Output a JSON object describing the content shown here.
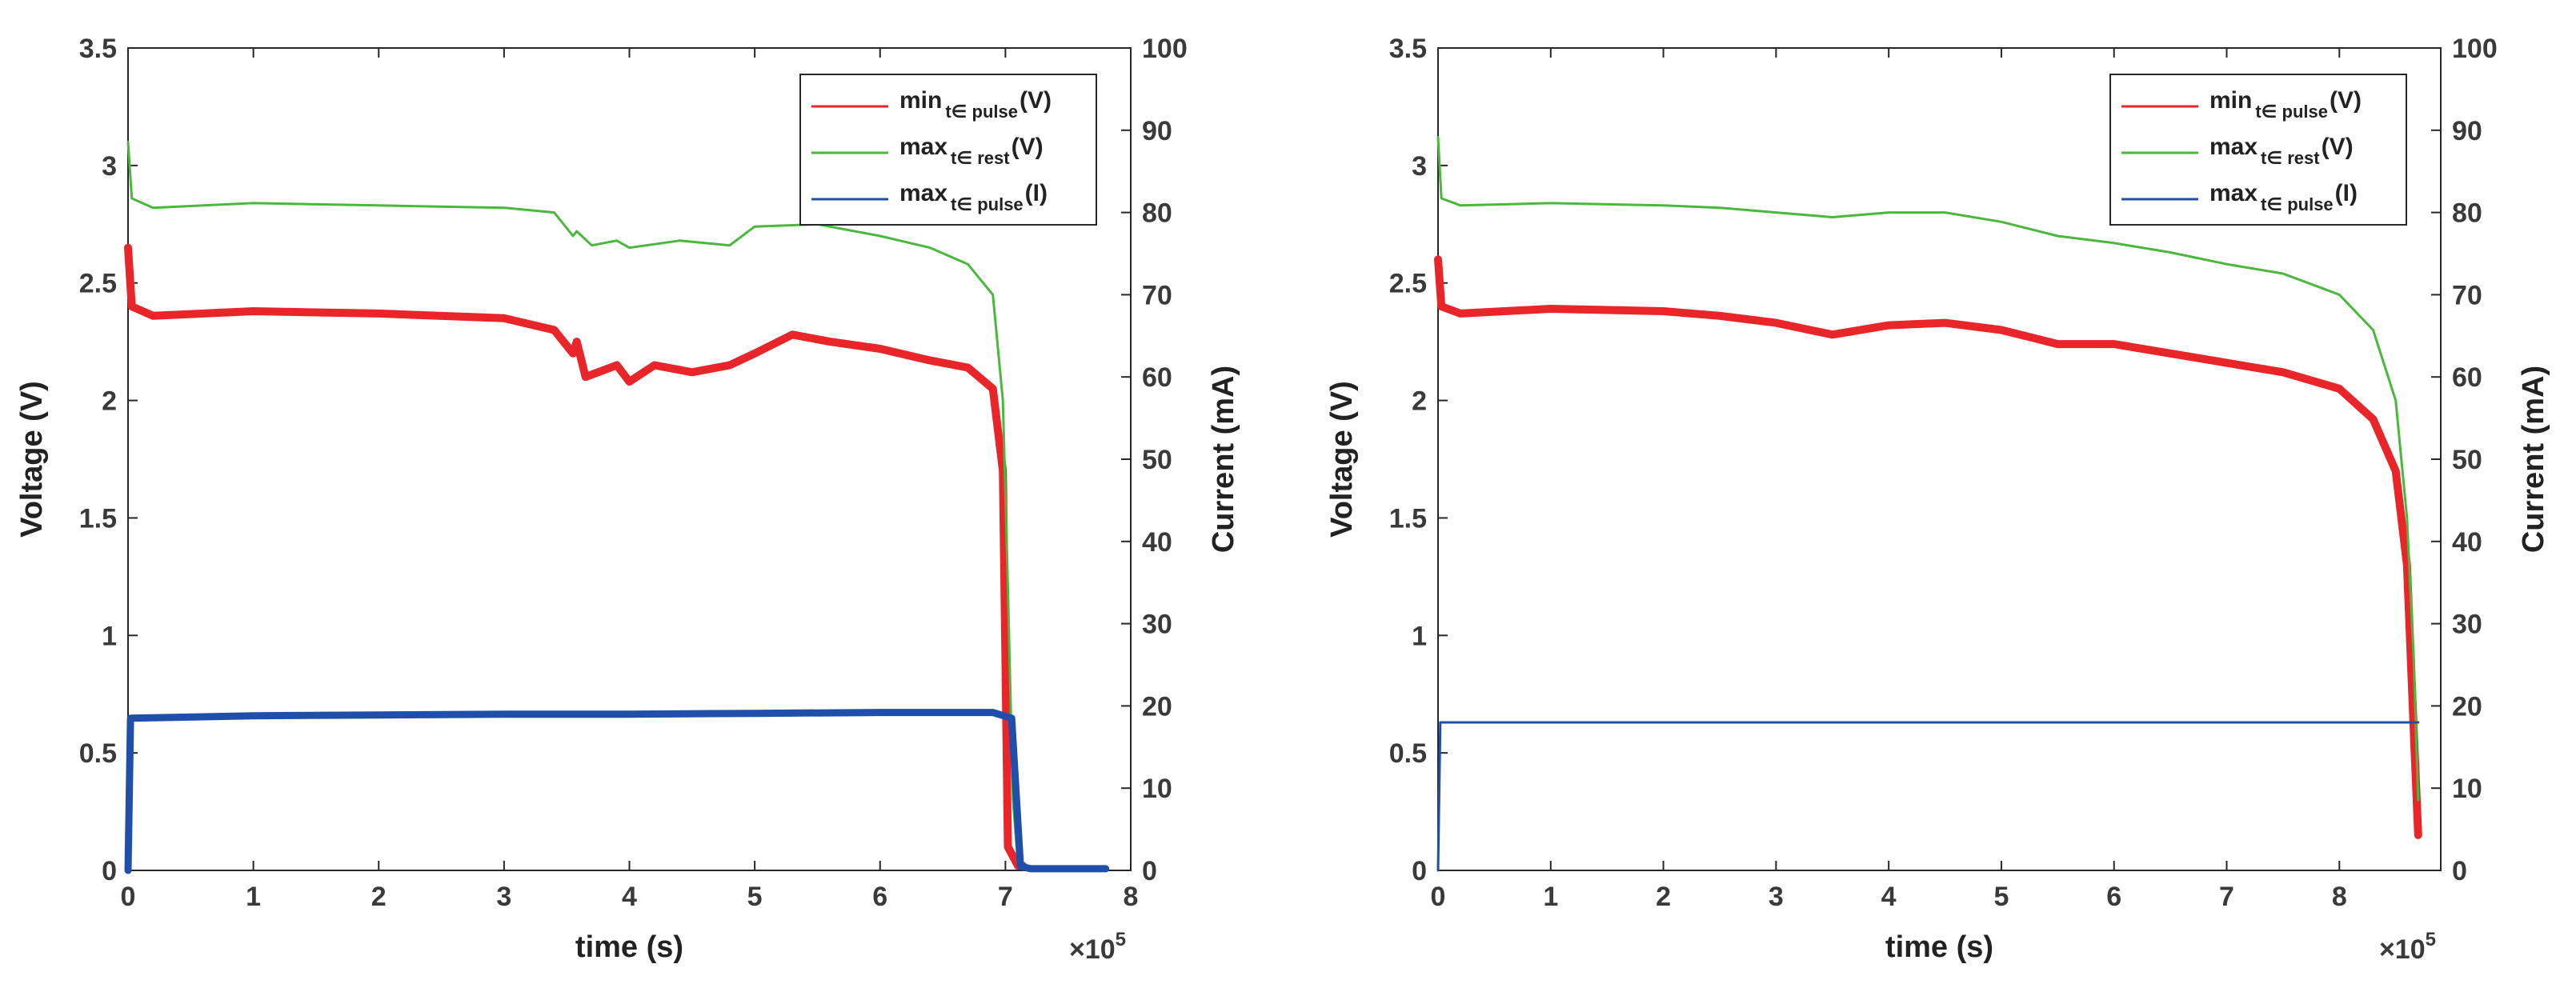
{
  "chart_data": [
    {
      "type": "line",
      "title": "",
      "xlabel": "time (s)",
      "ylabel_left": "Voltage (V)",
      "ylabel_right": "Current (mA)",
      "x_exponent": "×10",
      "x_exponent_power": "5",
      "xlim": [
        0,
        8
      ],
      "ylim_left": [
        0,
        3.5
      ],
      "ylim_right": [
        0,
        100
      ],
      "x_ticks": [
        "0",
        "1",
        "2",
        "3",
        "4",
        "5",
        "6",
        "7",
        "8"
      ],
      "y_left_ticks": [
        "0",
        "0.5",
        "1",
        "1.5",
        "2",
        "2.5",
        "3",
        "3.5"
      ],
      "y_right_ticks": [
        "0",
        "10",
        "20",
        "30",
        "40",
        "50",
        "60",
        "70",
        "80",
        "90",
        "100"
      ],
      "legend_position": "top-right",
      "series": [
        {
          "name": "min",
          "sub": "t∈ pulse",
          "unit": "(V)",
          "color": "#e8262a",
          "axis": "left",
          "x": [
            0,
            0.03,
            0.2,
            1,
            2,
            3,
            3.4,
            3.55,
            3.58,
            3.65,
            3.9,
            4.0,
            4.2,
            4.5,
            4.8,
            5.0,
            5.3,
            5.6,
            6.0,
            6.4,
            6.7,
            6.9,
            6.98,
            7.0,
            7.02,
            7.1,
            7.14
          ],
          "y": [
            2.65,
            2.4,
            2.36,
            2.38,
            2.37,
            2.35,
            2.3,
            2.2,
            2.25,
            2.1,
            2.15,
            2.08,
            2.15,
            2.12,
            2.15,
            2.2,
            2.28,
            2.25,
            2.22,
            2.17,
            2.14,
            2.05,
            1.7,
            0.9,
            0.1,
            0.02,
            0.02
          ]
        },
        {
          "name": "max",
          "sub": "t∈ rest",
          "unit": "(V)",
          "color": "#4ab83c",
          "axis": "left",
          "x": [
            0,
            0.03,
            0.2,
            1,
            2,
            3,
            3.4,
            3.55,
            3.58,
            3.7,
            3.9,
            4.0,
            4.4,
            4.8,
            5.0,
            5.5,
            6.0,
            6.4,
            6.7,
            6.9,
            6.98,
            7.02,
            7.06,
            7.1,
            7.14
          ],
          "y": [
            3.1,
            2.86,
            2.82,
            2.84,
            2.83,
            2.82,
            2.8,
            2.7,
            2.72,
            2.66,
            2.68,
            2.65,
            2.68,
            2.66,
            2.74,
            2.75,
            2.7,
            2.65,
            2.58,
            2.45,
            2.0,
            1.2,
            0.3,
            0.03,
            0.02
          ]
        },
        {
          "name": "max",
          "sub": "t∈ pulse",
          "unit": "(I)",
          "color": "#1f4fa8",
          "axis": "right",
          "x": [
            0,
            0.02,
            1,
            2,
            3,
            4,
            5,
            6,
            6.9,
            7.05,
            7.12,
            7.2,
            7.8
          ],
          "y": [
            0,
            18.5,
            18.8,
            18.9,
            19,
            19,
            19.1,
            19.2,
            19.2,
            18.5,
            0.5,
            0.2,
            0.2
          ]
        }
      ]
    },
    {
      "type": "line",
      "title": "",
      "xlabel": "time (s)",
      "ylabel_left": "Voltage (V)",
      "ylabel_right": "Current (mA)",
      "x_exponent": "×10",
      "x_exponent_power": "5",
      "xlim": [
        0,
        8.9
      ],
      "ylim_left": [
        0,
        3.5
      ],
      "ylim_right": [
        0,
        100
      ],
      "x_ticks": [
        "0",
        "1",
        "2",
        "3",
        "4",
        "5",
        "6",
        "7",
        "8"
      ],
      "y_left_ticks": [
        "0",
        "0.5",
        "1",
        "1.5",
        "2",
        "2.5",
        "3",
        "3.5"
      ],
      "y_right_ticks": [
        "0",
        "10",
        "20",
        "30",
        "40",
        "50",
        "60",
        "70",
        "80",
        "90",
        "100"
      ],
      "legend_position": "top-right",
      "series": [
        {
          "name": "min",
          "sub": "t∈ pulse",
          "unit": "(V)",
          "color": "#e8262a",
          "axis": "left",
          "x": [
            0,
            0.03,
            0.2,
            1,
            2,
            2.5,
            3,
            3.5,
            4,
            4.5,
            5,
            5.5,
            6,
            6.5,
            7,
            7.5,
            8,
            8.3,
            8.5,
            8.6,
            8.66,
            8.7
          ],
          "y": [
            2.6,
            2.4,
            2.37,
            2.39,
            2.38,
            2.36,
            2.33,
            2.28,
            2.32,
            2.33,
            2.3,
            2.24,
            2.24,
            2.2,
            2.16,
            2.12,
            2.05,
            1.92,
            1.7,
            1.3,
            0.6,
            0.15
          ]
        },
        {
          "name": "max",
          "sub": "t∈ rest",
          "unit": "(V)",
          "color": "#4ab83c",
          "axis": "left",
          "x": [
            0,
            0.03,
            0.2,
            1,
            2,
            2.5,
            3,
            3.5,
            4,
            4.5,
            5,
            5.5,
            6,
            6.5,
            7,
            7.5,
            8,
            8.3,
            8.5,
            8.6,
            8.66,
            8.7
          ],
          "y": [
            3.12,
            2.86,
            2.83,
            2.84,
            2.83,
            2.82,
            2.8,
            2.78,
            2.8,
            2.8,
            2.76,
            2.7,
            2.67,
            2.63,
            2.58,
            2.54,
            2.45,
            2.3,
            2.0,
            1.5,
            0.9,
            0.3
          ]
        },
        {
          "name": "max",
          "sub": "t∈ pulse",
          "unit": "(I)",
          "color": "#1f4fa8",
          "axis": "right",
          "x": [
            0,
            0.02,
            1,
            2,
            3,
            4,
            5,
            6,
            7,
            8,
            8.7
          ],
          "y": [
            0,
            18,
            18,
            18,
            18,
            18,
            18,
            18,
            18,
            18,
            18
          ]
        }
      ]
    }
  ]
}
